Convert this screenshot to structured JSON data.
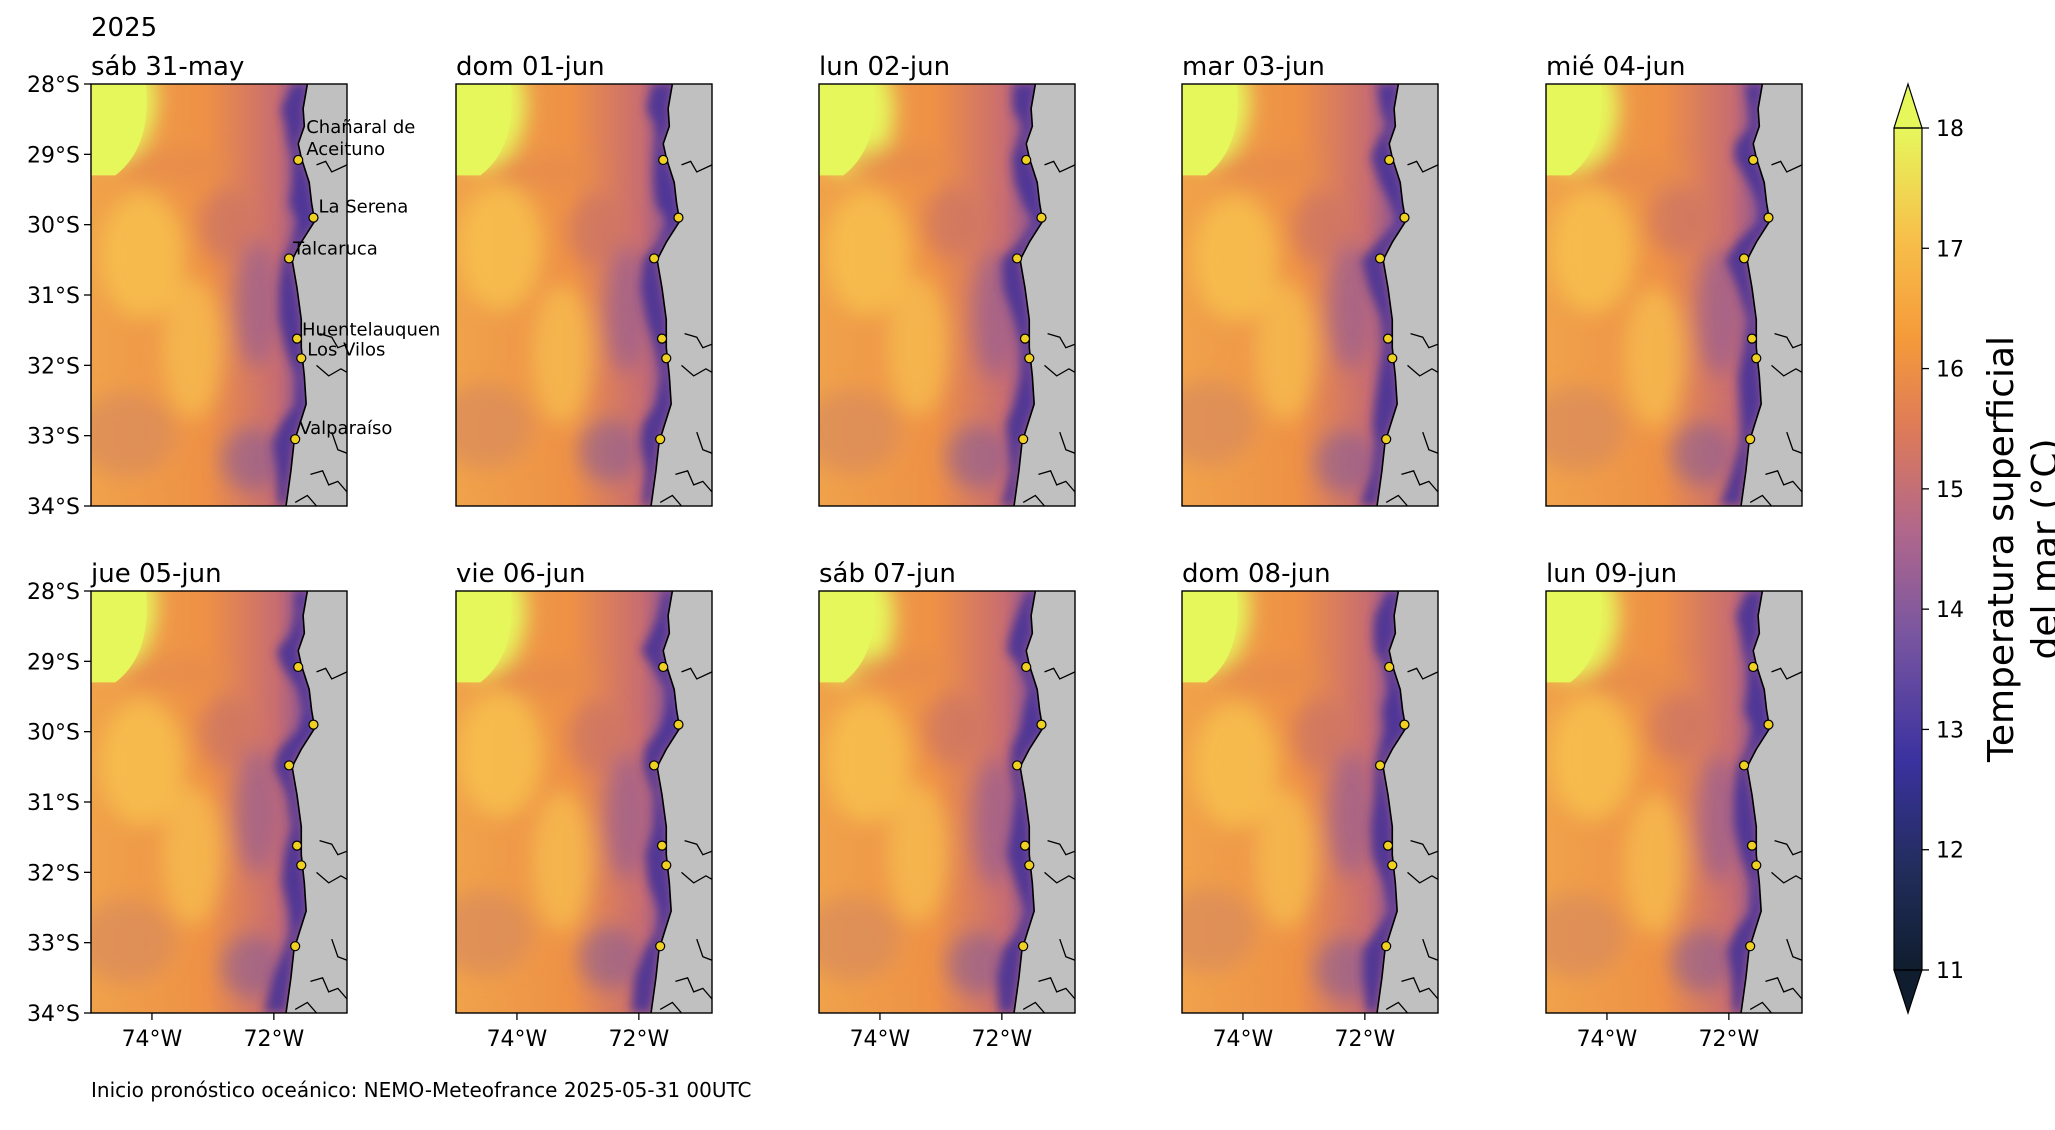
{
  "year_label": "2025",
  "panels": [
    {
      "title": "sáb 31-may"
    },
    {
      "title": "dom 01-jun"
    },
    {
      "title": "lun 02-jun"
    },
    {
      "title": "mar 03-jun"
    },
    {
      "title": "mié 04-jun"
    },
    {
      "title": "jue 05-jun"
    },
    {
      "title": "vie 06-jun"
    },
    {
      "title": "sáb 07-jun"
    },
    {
      "title": "dom 08-jun"
    },
    {
      "title": "lun 09-jun"
    }
  ],
  "lat_ticks": [
    "28°S",
    "29°S",
    "30°S",
    "31°S",
    "32°S",
    "33°S",
    "34°S"
  ],
  "lon_ticks": [
    "74°W",
    "72°W"
  ],
  "map_extent": {
    "lon_min": -75,
    "lon_max": -70.8,
    "lat_min": -34,
    "lat_max": -28
  },
  "locations": [
    {
      "name": "Chañaral de Aceituno",
      "lon": -71.6,
      "lat": -29.08
    },
    {
      "name": "La Serena",
      "lon": -71.35,
      "lat": -29.9
    },
    {
      "name": "Talcaruca",
      "lon": -71.75,
      "lat": -30.48
    },
    {
      "name": "Huentelauquen",
      "lon": -71.62,
      "lat": -31.62
    },
    {
      "name": "Los Vilos",
      "lon": -71.55,
      "lat": -31.9
    },
    {
      "name": "Valparaíso",
      "lon": -71.65,
      "lat": -33.05
    }
  ],
  "colorbar": {
    "label": "Temperatura superficial del mar (°C)",
    "min": 11,
    "max": 18,
    "ticks": [
      "11",
      "12",
      "13",
      "14",
      "15",
      "16",
      "17",
      "18"
    ],
    "extend": "both",
    "colors": [
      "#0f1d2e",
      "#222d5c",
      "#3b32a0",
      "#7a56a0",
      "#b0678c",
      "#dd7a5a",
      "#f59a3a",
      "#f7c04a",
      "#e6f75c"
    ]
  },
  "colors": {
    "land": "#c0c0c0",
    "warm_offshore": "#f19a44",
    "cool_coastal": "#5e3fa0",
    "marker_fill": "#f0d020"
  },
  "footer": "Inicio pronóstico oceánico: NEMO-Meteofrance 2025-05-31 00UTC"
}
